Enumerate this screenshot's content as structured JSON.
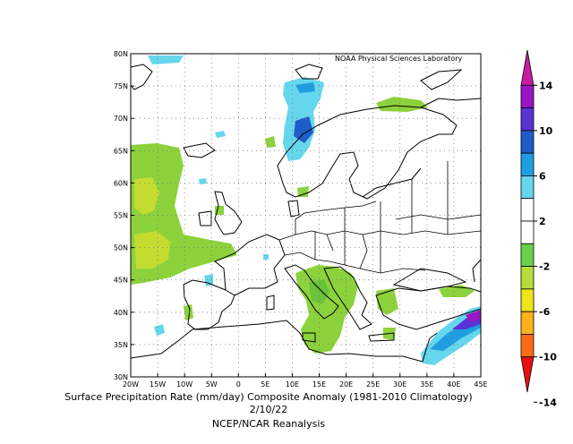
{
  "map": {
    "lat_labels": [
      "80N",
      "75N",
      "70N",
      "65N",
      "60N",
      "55N",
      "50N",
      "45N",
      "40N",
      "35N",
      "30N"
    ],
    "lon_labels": [
      "20W",
      "15W",
      "10W",
      "5W",
      "0",
      "5E",
      "10E",
      "15E",
      "20E",
      "25E",
      "30E",
      "35E",
      "40E",
      "45E"
    ],
    "lab_label": "NOAA Physical Sciences Laboratory",
    "caption_line1": "Surface Precipitation Rate (mm/day) Composite Anomaly (1981-2010 Climatology)",
    "caption_line2": "2/10/22",
    "caption_line3": "NCEP/NCAR Reanalysis"
  },
  "colorbar": {
    "labels": [
      "14",
      "10",
      "6",
      "2",
      "-2",
      "-6",
      "-10",
      "-14"
    ],
    "colors": [
      "#c81ca0",
      "#9a15c6",
      "#5a33d6",
      "#1e5cc8",
      "#1e9ee0",
      "#66d6ee",
      "#ffffff",
      "#ffffff",
      "#66d24a",
      "#b8dc38",
      "#f0e41a",
      "#ffb21a",
      "#ff6a14",
      "#e81010"
    ]
  }
}
